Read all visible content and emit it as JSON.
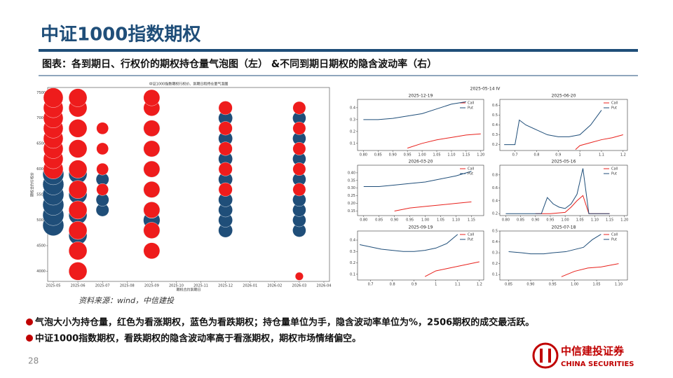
{
  "header": {
    "title": "中证1000指数期权",
    "subtitle": "图表：各到期日、行权价的期权持仓量气泡图（左） &不同到期日期权的隐含波动率（右）"
  },
  "source": "资料来源：wind，中信建投",
  "bullets": [
    "气泡大小为持仓量，红色为看涨期权，蓝色为看跌期权；持仓量单位为手，隐含波动率单位为%，2506期权的成交最活跃。",
    "中证1000指数期权，看跌期权的隐含波动率高于看涨期权，期权市场情绪偏空。"
  ],
  "page_number": "28",
  "logo": {
    "name": "中信建投证券",
    "english": "CHINA SECURITIES"
  },
  "iv_title": "2025-05-14 IV",
  "chart_data": [
    {
      "type": "bubble",
      "title": "中证1000指数期权行权价、到期日和持仓量气泡图",
      "x_label": "期权合约到期日",
      "y_label": "期权合约行权价",
      "xticks": [
        "2025-05",
        "2025-06",
        "2025-07",
        "2025-08",
        "2025-09",
        "2025-10",
        "2025-11",
        "2025-12",
        "2026-01",
        "2026-02",
        "2026-03",
        "2026-04"
      ],
      "ylim": [
        3800,
        7600
      ],
      "yticks": [
        4000,
        4500,
        5000,
        5500,
        6000,
        6500,
        7000,
        7500
      ],
      "series": [
        {
          "name": "Put",
          "color": "#1f4e79",
          "x": [
            "2025-05",
            "2025-05",
            "2025-05",
            "2025-05",
            "2025-05",
            "2025-05",
            "2025-06",
            "2025-06",
            "2025-06",
            "2025-06",
            "2025-07",
            "2025-07",
            "2025-07",
            "2025-09",
            "2025-09",
            "2025-09",
            "2025-09",
            "2025-09",
            "2025-09",
            "2025-09",
            "2025-12",
            "2025-12",
            "2025-12",
            "2025-12",
            "2025-12",
            "2025-12",
            "2025-12",
            "2025-12",
            "2026-03",
            "2026-03",
            "2026-03",
            "2026-03",
            "2026-03",
            "2026-03",
            "2026-03",
            "2026-03"
          ],
          "values": [
            4900,
            5100,
            5300,
            5500,
            5700,
            5900,
            4700,
            5100,
            5500,
            5900,
            5200,
            5400,
            5800,
            4800,
            5000,
            5200,
            5600,
            6000,
            6400,
            6800,
            4800,
            5000,
            5200,
            5400,
            5800,
            6200,
            6600,
            7000,
            4800,
            5000,
            5200,
            5400,
            5800,
            6200,
            6600,
            7000
          ],
          "sizes": [
            400,
            400,
            400,
            400,
            400,
            400,
            300,
            300,
            300,
            300,
            150,
            150,
            150,
            250,
            250,
            250,
            250,
            250,
            250,
            250,
            180,
            180,
            180,
            180,
            180,
            180,
            180,
            180,
            160,
            160,
            160,
            160,
            160,
            160,
            160,
            160
          ]
        },
        {
          "name": "Call",
          "color": "#ee1c1c",
          "x": [
            "2025-05",
            "2025-05",
            "2025-05",
            "2025-05",
            "2025-05",
            "2025-05",
            "2025-05",
            "2025-05",
            "2025-06",
            "2025-06",
            "2025-06",
            "2025-06",
            "2025-06",
            "2025-06",
            "2025-06",
            "2025-06",
            "2025-06",
            "2025-06",
            "2025-07",
            "2025-07",
            "2025-07",
            "2025-07",
            "2025-09",
            "2025-09",
            "2025-09",
            "2025-09",
            "2025-09",
            "2025-09",
            "2025-09",
            "2025-09",
            "2025-09",
            "2025-12",
            "2025-12",
            "2025-12",
            "2025-12",
            "2025-12",
            "2026-03",
            "2026-03",
            "2026-03",
            "2026-03",
            "2026-03",
            "2026-03"
          ],
          "values": [
            6000,
            6200,
            6400,
            6600,
            6800,
            7000,
            7200,
            7400,
            4000,
            4400,
            4800,
            5200,
            5600,
            6000,
            6400,
            6800,
            7200,
            7400,
            5600,
            6000,
            6400,
            6800,
            4400,
            4800,
            5200,
            5600,
            6000,
            6400,
            6800,
            7200,
            7400,
            5600,
            6000,
            6400,
            6800,
            7200,
            5600,
            6000,
            6400,
            6800,
            7200,
            3900
          ],
          "sizes": [
            350,
            350,
            350,
            350,
            350,
            350,
            350,
            350,
            300,
            300,
            300,
            300,
            300,
            300,
            300,
            300,
            300,
            300,
            130,
            130,
            130,
            130,
            240,
            240,
            240,
            240,
            240,
            240,
            240,
            240,
            240,
            170,
            170,
            170,
            170,
            170,
            150,
            150,
            150,
            150,
            150,
            60
          ]
        }
      ]
    },
    {
      "type": "line",
      "title": "2025-12-19",
      "xlim": [
        0.78,
        1.21
      ],
      "xticks": [
        {
          "value": 0.8,
          "label": "0.80"
        },
        {
          "value": 0.85,
          "label": "0.85"
        },
        {
          "value": 0.9,
          "label": "0.90"
        },
        {
          "value": 0.95,
          "label": "0.95"
        },
        {
          "value": 1.0,
          "label": "1.00"
        },
        {
          "value": 1.05,
          "label": "1.05"
        },
        {
          "value": 1.1,
          "label": "1.10"
        },
        {
          "value": 1.15,
          "label": "1.15"
        },
        {
          "value": 1.2,
          "label": "1.20"
        }
      ],
      "ylim": [
        0.04,
        0.47
      ],
      "yticks": [
        0.1,
        0.2,
        0.3,
        0.4
      ],
      "series": [
        {
          "name": "Call",
          "color": "#e8211c",
          "x": [
            0.95,
            1.0,
            1.05,
            1.1,
            1.15,
            1.2
          ],
          "values": [
            0.06,
            0.1,
            0.13,
            0.15,
            0.17,
            0.18
          ]
        },
        {
          "name": "Put",
          "color": "#1f4e79",
          "x": [
            0.8,
            0.85,
            0.9,
            0.95,
            1.0,
            1.05,
            1.1,
            1.15
          ],
          "values": [
            0.3,
            0.3,
            0.31,
            0.33,
            0.35,
            0.39,
            0.43,
            0.45
          ]
        }
      ]
    },
    {
      "type": "line",
      "title": "2025-06-20",
      "xlim": [
        0.63,
        1.22
      ],
      "xticks": [
        0.7,
        0.8,
        0.9,
        1.0,
        1.1,
        1.2
      ],
      "ylim": [
        0.14,
        0.66
      ],
      "yticks": [
        0.2,
        0.3,
        0.4,
        0.5,
        0.6
      ],
      "series": [
        {
          "name": "Call",
          "color": "#e8211c",
          "x": [
            0.98,
            1.0,
            1.05,
            1.1,
            1.15,
            1.2
          ],
          "values": [
            0.15,
            0.19,
            0.22,
            0.25,
            0.27,
            0.3
          ]
        },
        {
          "name": "Put",
          "color": "#1f4e79",
          "x": [
            0.65,
            0.7,
            0.72,
            0.75,
            0.8,
            0.85,
            0.9,
            0.95,
            1.0,
            1.05,
            1.1
          ],
          "values": [
            0.2,
            0.2,
            0.45,
            0.4,
            0.35,
            0.3,
            0.28,
            0.28,
            0.3,
            0.4,
            0.55
          ]
        }
      ]
    },
    {
      "type": "line",
      "title": "2026-03-20",
      "xlim": [
        0.78,
        1.19
      ],
      "xticks": [
        {
          "value": 0.8,
          "label": "0.80"
        },
        {
          "value": 0.85,
          "label": "0.85"
        },
        {
          "value": 0.9,
          "label": "0.90"
        },
        {
          "value": 0.95,
          "label": "0.95"
        },
        {
          "value": 1.0,
          "label": "1.00"
        },
        {
          "value": 1.05,
          "label": "1.05"
        },
        {
          "value": 1.1,
          "label": "1.10"
        },
        {
          "value": 1.15,
          "label": "1.15"
        }
      ],
      "ylim": [
        0.12,
        0.45
      ],
      "yticks": [
        {
          "value": 0.15,
          "label": "0.15"
        },
        {
          "value": 0.2,
          "label": "0.20"
        },
        {
          "value": 0.25,
          "label": "0.25"
        },
        {
          "value": 0.3,
          "label": "0.30"
        },
        {
          "value": 0.35,
          "label": "0.35"
        },
        {
          "value": 0.4,
          "label": "0.40"
        }
      ],
      "series": [
        {
          "name": "Call",
          "color": "#e8211c",
          "x": [
            0.9,
            0.95,
            1.0,
            1.05,
            1.1,
            1.15
          ],
          "values": [
            0.15,
            0.17,
            0.18,
            0.19,
            0.2,
            0.21
          ]
        },
        {
          "name": "Put",
          "color": "#1f4e79",
          "x": [
            0.8,
            0.85,
            0.9,
            0.95,
            1.0,
            1.05,
            1.1,
            1.15
          ],
          "values": [
            0.31,
            0.31,
            0.32,
            0.33,
            0.34,
            0.36,
            0.38,
            0.41
          ]
        }
      ]
    },
    {
      "type": "line",
      "title": "2025-05-16",
      "xlim": [
        0.78,
        1.21
      ],
      "xticks": [
        {
          "value": 0.8,
          "label": "0.80"
        },
        {
          "value": 0.85,
          "label": "0.85"
        },
        {
          "value": 0.9,
          "label": "0.90"
        },
        {
          "value": 0.95,
          "label": "0.95"
        },
        {
          "value": 1.0,
          "label": "1.00"
        },
        {
          "value": 1.05,
          "label": "1.05"
        },
        {
          "value": 1.1,
          "label": "1.10"
        },
        {
          "value": 1.15,
          "label": "1.15"
        },
        {
          "value": 1.2,
          "label": "1.20"
        }
      ],
      "ylim": [
        0.17,
        0.95
      ],
      "yticks": [
        0.2,
        0.4,
        0.6,
        0.8
      ],
      "series": [
        {
          "name": "Call",
          "color": "#e8211c",
          "x": [
            0.9,
            0.95,
            1.0,
            1.02,
            1.04,
            1.06,
            1.08,
            1.1,
            1.15
          ],
          "values": [
            0.2,
            0.2,
            0.22,
            0.3,
            0.4,
            0.48,
            0.2,
            0.2,
            0.2
          ]
        },
        {
          "name": "Put",
          "color": "#1f4e79",
          "x": [
            0.8,
            0.85,
            0.9,
            0.92,
            0.94,
            0.96,
            0.98,
            1.0,
            1.02,
            1.04,
            1.06,
            1.08,
            1.1,
            1.15
          ],
          "values": [
            0.2,
            0.2,
            0.2,
            0.2,
            0.45,
            0.35,
            0.3,
            0.28,
            0.35,
            0.5,
            0.9,
            0.2,
            0.2,
            0.2
          ]
        }
      ]
    },
    {
      "type": "line",
      "title": "2025-09-19",
      "xlim": [
        0.64,
        1.22
      ],
      "xticks": [
        0.7,
        0.8,
        0.9,
        1.0,
        1.1,
        1.2
      ],
      "ylim": [
        0.05,
        0.48
      ],
      "yticks": [
        0.1,
        0.2,
        0.3,
        0.4
      ],
      "series": [
        {
          "name": "Call",
          "color": "#e8211c",
          "x": [
            0.95,
            1.0,
            1.05,
            1.1,
            1.15,
            1.2
          ],
          "values": [
            0.08,
            0.13,
            0.15,
            0.17,
            0.19,
            0.21
          ]
        },
        {
          "name": "Put",
          "color": "#1f4e79",
          "x": [
            0.65,
            0.7,
            0.75,
            0.8,
            0.85,
            0.9,
            0.95,
            1.0,
            1.05,
            1.1
          ],
          "values": [
            0.36,
            0.34,
            0.32,
            0.31,
            0.3,
            0.3,
            0.31,
            0.33,
            0.37,
            0.45
          ]
        }
      ]
    },
    {
      "type": "line",
      "title": "2025-07-18",
      "xlim": [
        0.83,
        1.12
      ],
      "xticks": [
        {
          "value": 0.85,
          "label": "0.85"
        },
        {
          "value": 0.9,
          "label": "0.90"
        },
        {
          "value": 0.95,
          "label": "0.95"
        },
        {
          "value": 1.0,
          "label": "1.00"
        },
        {
          "value": 1.05,
          "label": "1.05"
        },
        {
          "value": 1.1,
          "label": "1.10"
        }
      ],
      "ylim": [
        0.05,
        0.5
      ],
      "yticks": [
        0.1,
        0.2,
        0.3,
        0.4,
        0.5
      ],
      "series": [
        {
          "name": "Call",
          "color": "#e8211c",
          "x": [
            0.97,
            1.0,
            1.03,
            1.06,
            1.1
          ],
          "values": [
            0.08,
            0.13,
            0.16,
            0.17,
            0.2
          ]
        },
        {
          "name": "Put",
          "color": "#1f4e79",
          "x": [
            0.85,
            0.88,
            0.9,
            0.93,
            0.95,
            0.98,
            1.0,
            1.02,
            1.04,
            1.06
          ],
          "values": [
            0.31,
            0.3,
            0.29,
            0.29,
            0.3,
            0.31,
            0.33,
            0.35,
            0.42,
            0.47
          ]
        }
      ]
    }
  ]
}
